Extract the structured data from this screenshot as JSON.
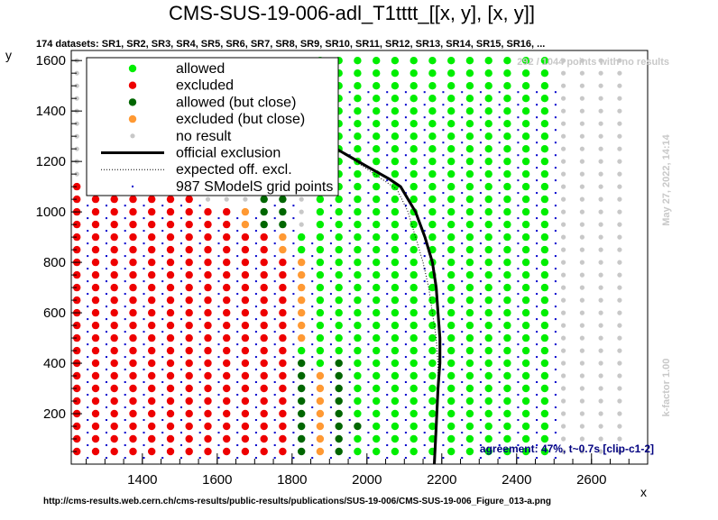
{
  "chart_data": {
    "type": "scatter",
    "title": "CMS-SUS-19-006-adl_T1tttt_[[x, y], [x, y]]",
    "subtitle": "174 datasets: SR1, SR2, SR3, SR4, SR5, SR6, SR7, SR8, SR9, SR10, SR11, SR12, SR13, SR14, SR15, SR16, ...",
    "xlabel": "x",
    "ylabel": "y",
    "xlim": [
      1210,
      2750
    ],
    "ylim": [
      0,
      1640
    ],
    "x_ticks": [
      1400,
      1600,
      1800,
      2000,
      2200,
      2400,
      2600
    ],
    "y_ticks": [
      200,
      400,
      600,
      800,
      1000,
      1200,
      1400,
      1600
    ],
    "x_tick_labels": [
      "1400",
      "1600",
      "1800",
      "2000",
      "2200",
      "2400",
      "2600"
    ],
    "y_tick_labels": [
      "200",
      "400",
      "600",
      "800",
      "1000",
      "1200",
      "1400",
      "1600"
    ],
    "grid": false,
    "legend_position": "top-left",
    "legend": [
      {
        "label": "allowed",
        "key": "allowed"
      },
      {
        "label": "excluded",
        "key": "excluded"
      },
      {
        "label": "allowed (but close)",
        "key": "allowed_close"
      },
      {
        "label": "excluded (but close)",
        "key": "excluded_close"
      },
      {
        "label": "no result",
        "key": "no_result"
      },
      {
        "label": "official exclusion",
        "key": "official"
      },
      {
        "label": "expected off. excl.",
        "key": "expected"
      },
      {
        "label": "987 SModelS grid points",
        "key": "grid_points"
      }
    ],
    "colors": {
      "allowed": "#00ee00",
      "excluded": "#ee0000",
      "allowed_close": "#006600",
      "excluded_close": "#ff9933",
      "no_result": "#c8c8c8",
      "official": "#000000",
      "expected": "#000000",
      "grid_points": "#0000cc",
      "agreement": "#000080"
    },
    "point_grid": {
      "x_start": 1225,
      "x_step": 50,
      "x_count": 30,
      "y_start": 50,
      "y_step": 50,
      "y_count": 32
    },
    "regions": {
      "excluded_bottom_x_max": 1800,
      "excluded_close_columns": [
        {
          "x": 1675,
          "y_min": 950,
          "y_max": 1000
        },
        {
          "x": 1775,
          "y_min": 850,
          "y_max": 900
        },
        {
          "x": 1825,
          "y_min": 500,
          "y_max": 800
        },
        {
          "x": 1875,
          "y_min": 50,
          "y_max": 350
        }
      ],
      "allowed_close_columns": [
        {
          "x": 1725,
          "y_min": 950,
          "y_max": 1050
        },
        {
          "x": 1775,
          "y_min": 950,
          "y_max": 1050
        },
        {
          "x": 1825,
          "y_min": 50,
          "y_max": 400
        },
        {
          "x": 1925,
          "y_min": 50,
          "y_max": 400
        },
        {
          "x": 1975,
          "y_min": 150,
          "y_max": 150
        }
      ],
      "allowed_x_max": 2475
    },
    "official_exclusion": {
      "x": [
        1740,
        1860,
        1930,
        2000,
        2060,
        2090,
        2130,
        2155,
        2175,
        2185,
        2190,
        2195,
        2195,
        2190,
        2185,
        2180
      ],
      "y": [
        1230,
        1300,
        1240,
        1180,
        1130,
        1100,
        1000,
        900,
        800,
        700,
        600,
        500,
        400,
        300,
        150,
        0
      ]
    },
    "expected_exclusion": {
      "x": [
        1760,
        1870,
        1940,
        2000,
        2050,
        2080,
        2110,
        2130,
        2150,
        2165,
        2175,
        2185,
        2190,
        2190,
        2185,
        2180
      ],
      "y": [
        1220,
        1290,
        1230,
        1170,
        1120,
        1090,
        1000,
        900,
        800,
        700,
        600,
        500,
        400,
        300,
        150,
        0
      ]
    },
    "annotations": {
      "no_results_note": "292 / 1044 points with no results",
      "date": "May 27, 2022, 14:14",
      "kfactor": "k-factor 1.00",
      "agreement": "agreement: 47%, t~0.7s [clip-c1-2]",
      "source_url": "http://cms-results.web.cern.ch/cms-results/public-results/publications/SUS-19-006/CMS-SUS-19-006_Figure_013-a.png"
    }
  }
}
